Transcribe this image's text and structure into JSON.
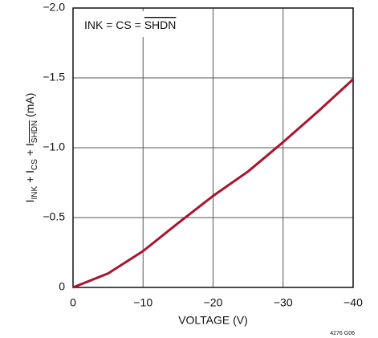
{
  "chart_data": {
    "type": "line",
    "annotation": [
      {
        "text": "INK = CS = ",
        "style": "normal"
      },
      {
        "text": "SHDN",
        "style": "overline"
      }
    ],
    "x_label": "VOLTAGE (V)",
    "y_label": [
      {
        "text": "I",
        "style": "normal"
      },
      {
        "text": "INK",
        "style": "sub"
      },
      {
        "text": " + I",
        "style": "normal"
      },
      {
        "text": "CS",
        "style": "sub"
      },
      {
        "text": " + I",
        "style": "normal"
      },
      {
        "text": "SHDN",
        "style": "sub-overline"
      },
      {
        "text": " (mA)",
        "style": "normal"
      }
    ],
    "footnote": "4276 G06",
    "x": [
      0,
      -5,
      -10,
      -15,
      -20,
      -25,
      -30,
      -35,
      -40
    ],
    "series": [
      {
        "color": "#a8152e",
        "values": [
          0,
          -0.1,
          -0.26,
          -0.46,
          -0.655,
          -0.83,
          -1.04,
          -1.26,
          -1.49
        ]
      }
    ],
    "xlim": [
      0,
      -40
    ],
    "xticks": [
      0,
      {
        "value": -10,
        "label": "−10"
      },
      {
        "value": -20,
        "label": "−20"
      },
      {
        "value": -30,
        "label": "−30"
      },
      {
        "value": -40,
        "label": "−40"
      }
    ],
    "ylim": [
      0,
      -2
    ],
    "yticks": [
      0,
      {
        "value": -0.5,
        "label": "−0.5"
      },
      {
        "value": -1,
        "label": "−1.0"
      },
      {
        "value": -1.5,
        "label": "−1.5"
      },
      {
        "value": -2,
        "label": "−2.0"
      }
    ],
    "grid": true
  }
}
